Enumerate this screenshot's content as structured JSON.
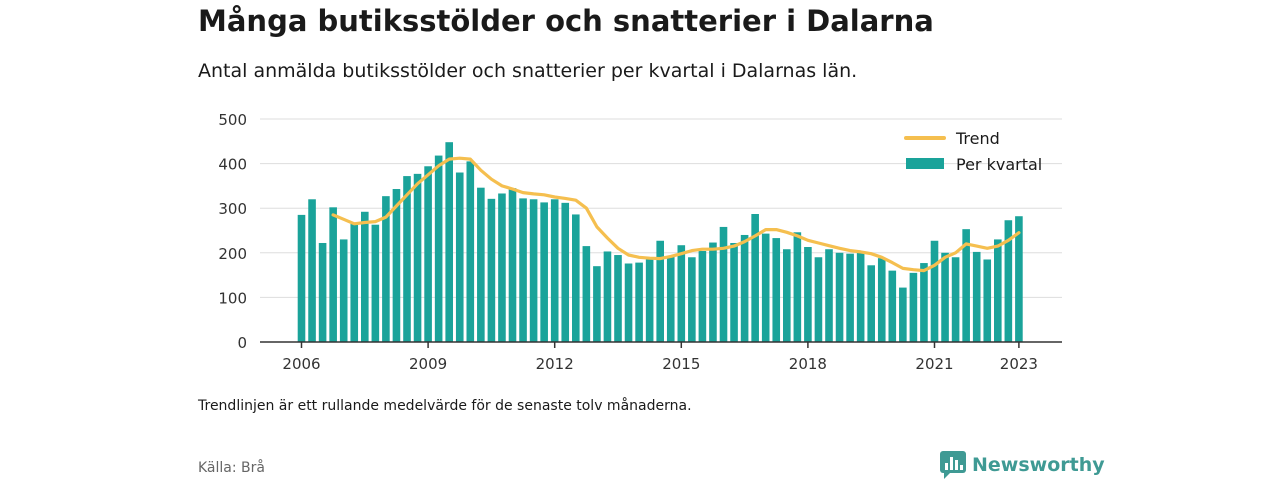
{
  "header": {
    "title": "Många butiksstölder och snatterier i Dalarna",
    "subtitle": "Antal anmälda butiksstölder och snatterier per kvartal i Dalarnas län."
  },
  "footer": {
    "note": "Trendlinjen är ett rullande medelvärde för de senaste tolv månaderna.",
    "source": "Källa: Brå",
    "brand": "Newsworthy"
  },
  "colors": {
    "bar": "#1aa39a",
    "trend": "#f5bf4f",
    "grid": "#dddddd",
    "axis": "#333333",
    "brand": "#3f9a94"
  },
  "chart_data": {
    "type": "bar",
    "x_start": "2006 Q1",
    "x_ticks": [
      "2006",
      "2009",
      "2012",
      "2015",
      "2018",
      "2021",
      "2023"
    ],
    "y_ticks": [
      "0",
      "100",
      "200",
      "300",
      "400",
      "500"
    ],
    "ylim": [
      0,
      500
    ],
    "legend": {
      "position": "top-right",
      "trend_label": "Trend",
      "bars_label": "Per kvartal"
    },
    "series": [
      {
        "name": "Per kvartal",
        "type": "bar",
        "values": [
          285,
          320,
          222,
          302,
          230,
          268,
          292,
          263,
          327,
          343,
          372,
          377,
          394,
          418,
          448,
          380,
          405,
          346,
          321,
          333,
          345,
          322,
          320,
          313,
          320,
          312,
          286,
          215,
          170,
          203,
          195,
          176,
          178,
          185,
          227,
          193,
          217,
          190,
          204,
          223,
          258,
          222,
          240,
          287,
          243,
          233,
          208,
          246,
          213,
          190,
          208,
          200,
          198,
          200,
          172,
          188,
          160,
          122,
          155,
          177,
          227,
          200,
          190,
          253,
          202,
          185,
          230,
          273,
          282
        ]
      },
      {
        "name": "Trend",
        "type": "line",
        "values": [
          null,
          null,
          null,
          285,
          275,
          265,
          268,
          270,
          280,
          305,
          330,
          355,
          375,
          395,
          410,
          412,
          410,
          385,
          365,
          350,
          343,
          335,
          332,
          330,
          325,
          322,
          318,
          300,
          258,
          233,
          210,
          195,
          190,
          188,
          187,
          192,
          198,
          205,
          208,
          208,
          210,
          215,
          225,
          238,
          252,
          252,
          246,
          238,
          228,
          222,
          216,
          210,
          205,
          202,
          198,
          190,
          178,
          165,
          162,
          160,
          172,
          190,
          200,
          220,
          215,
          210,
          215,
          228,
          245
        ]
      }
    ]
  }
}
